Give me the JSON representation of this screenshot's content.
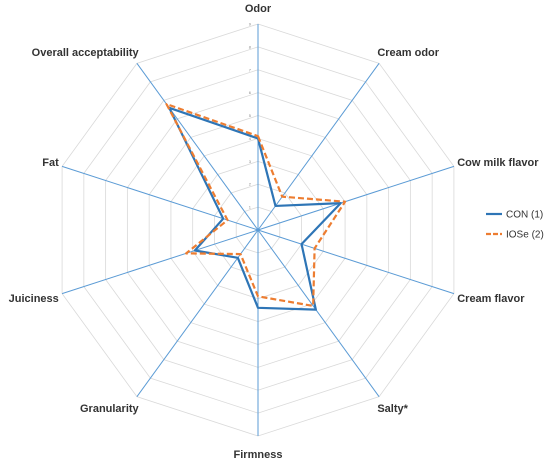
{
  "chart_data": {
    "type": "radar",
    "title": "",
    "axes": [
      "Odor",
      "Cream odor",
      "Cow milk flavor",
      "Cream flavor",
      "Salty*",
      "Firmness",
      "Granularity",
      "Juiciness",
      "Fat",
      "Overall acceptability"
    ],
    "rlim": [
      0,
      9
    ],
    "ticks": [
      "1",
      "2",
      "3",
      "4",
      "5",
      "6",
      "7",
      "8",
      "9"
    ],
    "grid": true,
    "legend_position": "right",
    "series": [
      {
        "name": "CON (1)",
        "color": "#2e75b6",
        "dash": "solid",
        "values": [
          4.0,
          1.3,
          3.8,
          2.0,
          4.3,
          3.4,
          1.5,
          2.9,
          1.6,
          6.6
        ]
      },
      {
        "name": "IOSe (2)",
        "color": "#ed7d31",
        "dash": "dashed",
        "values": [
          4.1,
          1.8,
          4.0,
          2.6,
          4.1,
          2.9,
          1.3,
          3.3,
          1.4,
          6.8
        ]
      }
    ]
  }
}
